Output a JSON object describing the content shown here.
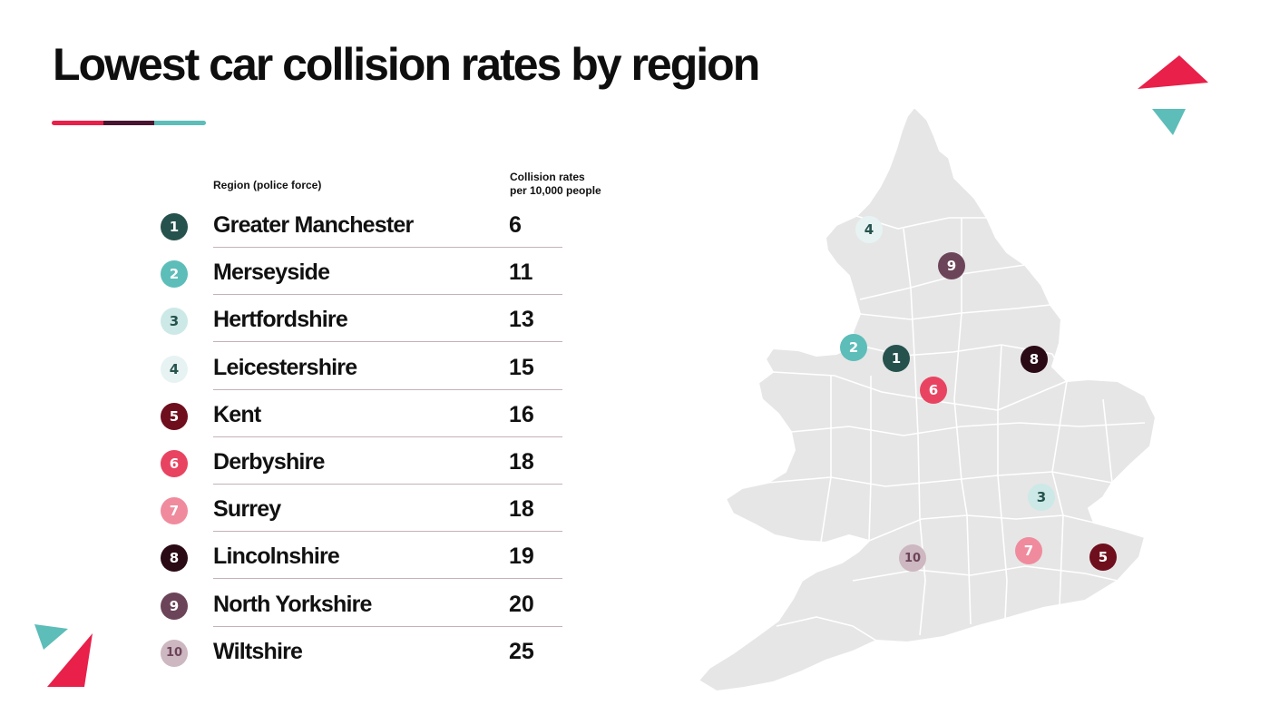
{
  "title": "Lowest car collision rates by region",
  "palette": {
    "accent_red": "#e8204a",
    "accent_teal": "#5dbdb9",
    "dark_plum": "#4a1530",
    "map_fill": "#e6e6e6",
    "map_border": "#ffffff"
  },
  "table": {
    "region_header": "Region (police force)",
    "rate_header_line1": "Collision rates",
    "rate_header_line2": "per 10,000 people"
  },
  "chart_data": {
    "type": "table",
    "title": "Lowest car collision rates by region",
    "columns": [
      "Region (police force)",
      "Collision rates per 10,000 people"
    ],
    "rows": [
      {
        "rank": "1",
        "region": "Greater Manchester",
        "rate": "6",
        "badge_color": "#26524e",
        "badge_text_color": "#ffffff"
      },
      {
        "rank": "2",
        "region": "Merseyside",
        "rate": "11",
        "badge_color": "#5dbdb9",
        "badge_text_color": "#ffffff"
      },
      {
        "rank": "3",
        "region": "Hertfordshire",
        "rate": "13",
        "badge_color": "#cce9e7",
        "badge_text_color": "#26524e"
      },
      {
        "rank": "4",
        "region": "Leicestershire",
        "rate": "15",
        "badge_color": "#e7f3f2",
        "badge_text_color": "#26524e"
      },
      {
        "rank": "5",
        "region": "Kent",
        "rate": "16",
        "badge_color": "#6f0e1d",
        "badge_text_color": "#ffffff"
      },
      {
        "rank": "6",
        "region": "Derbyshire",
        "rate": "18",
        "badge_color": "#e84461",
        "badge_text_color": "#ffffff"
      },
      {
        "rank": "7",
        "region": "Surrey",
        "rate": "18",
        "badge_color": "#f08b9d",
        "badge_text_color": "#ffffff"
      },
      {
        "rank": "8",
        "region": "Lincolnshire",
        "rate": "19",
        "badge_color": "#2a0a15",
        "badge_text_color": "#ffffff"
      },
      {
        "rank": "9",
        "region": "North Yorkshire",
        "rate": "20",
        "badge_color": "#6c4459",
        "badge_text_color": "#ffffff"
      },
      {
        "rank": "10",
        "region": "Wiltshire",
        "rate": "25",
        "badge_color": "#cdb7c0",
        "badge_text_color": "#6c4459"
      }
    ]
  }
}
